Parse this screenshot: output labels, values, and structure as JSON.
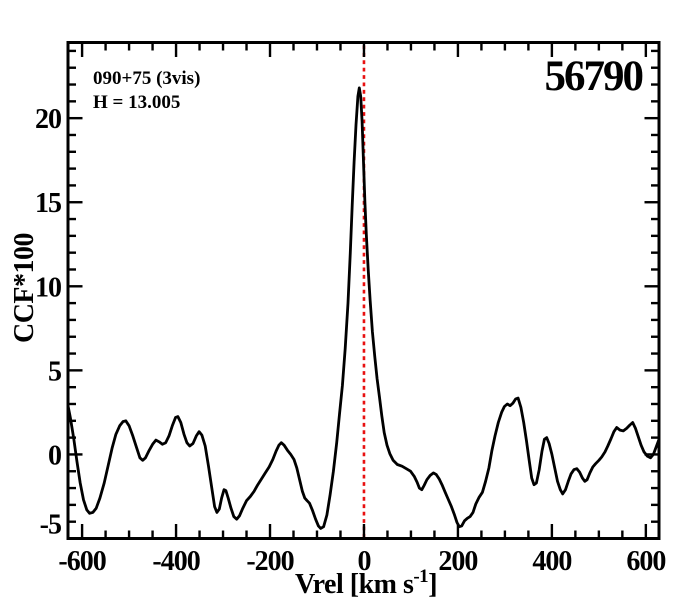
{
  "chart_data": {
    "type": "line",
    "title": "56790",
    "annotations": [
      "090+75 (3vis)",
      "H = 13.005"
    ],
    "xlabel": {
      "main": "Vrel [km s",
      "sup": "-1",
      "end": "]"
    },
    "ylabel": "CCF*100",
    "xlim": [
      -630,
      628
    ],
    "ylim": [
      -5,
      24.5
    ],
    "x_major_ticks": [
      -600,
      -400,
      -200,
      0,
      200,
      400,
      600
    ],
    "x_tick_labels": [
      "-600",
      "-400",
      "-200",
      "0",
      "200",
      "400",
      "600"
    ],
    "x_minor_step": 50,
    "y_major_ticks": [
      -5,
      0,
      5,
      10,
      15,
      20
    ],
    "y_tick_labels": [
      "-5",
      "0",
      "5",
      "10",
      "15",
      "20"
    ],
    "y_minor_step": 1,
    "grid": false,
    "legend": null,
    "marker_line_x": 0,
    "colors": {
      "curve": "#000000",
      "marker_line": "#e81010",
      "frame": "#000000",
      "text": "#000000",
      "background": "#ffffff"
    },
    "series": [
      {
        "name": "CCF",
        "points": [
          [
            -630,
            2.9
          ],
          [
            -625,
            2.2
          ],
          [
            -618,
            1.0
          ],
          [
            -611,
            -0.4
          ],
          [
            -604,
            -1.7
          ],
          [
            -597,
            -2.7
          ],
          [
            -590,
            -3.3
          ],
          [
            -584,
            -3.5
          ],
          [
            -577,
            -3.45
          ],
          [
            -570,
            -3.2
          ],
          [
            -562,
            -2.6
          ],
          [
            -553,
            -1.7
          ],
          [
            -544,
            -0.6
          ],
          [
            -536,
            0.4
          ],
          [
            -528,
            1.2
          ],
          [
            -520,
            1.7
          ],
          [
            -513,
            1.95
          ],
          [
            -507,
            2.0
          ],
          [
            -500,
            1.7
          ],
          [
            -492,
            1.1
          ],
          [
            -484,
            0.4
          ],
          [
            -477,
            -0.2
          ],
          [
            -471,
            -0.35
          ],
          [
            -465,
            -0.2
          ],
          [
            -458,
            0.2
          ],
          [
            -450,
            0.6
          ],
          [
            -443,
            0.85
          ],
          [
            -436,
            0.75
          ],
          [
            -429,
            0.6
          ],
          [
            -422,
            0.7
          ],
          [
            -415,
            1.1
          ],
          [
            -408,
            1.7
          ],
          [
            -401,
            2.2
          ],
          [
            -396,
            2.25
          ],
          [
            -390,
            1.9
          ],
          [
            -383,
            1.2
          ],
          [
            -377,
            0.7
          ],
          [
            -371,
            0.5
          ],
          [
            -364,
            0.65
          ],
          [
            -357,
            1.1
          ],
          [
            -351,
            1.35
          ],
          [
            -345,
            1.15
          ],
          [
            -338,
            0.5
          ],
          [
            -331,
            -0.7
          ],
          [
            -324,
            -2.0
          ],
          [
            -318,
            -3.1
          ],
          [
            -313,
            -3.45
          ],
          [
            -308,
            -3.25
          ],
          [
            -303,
            -2.6
          ],
          [
            -298,
            -2.1
          ],
          [
            -294,
            -2.15
          ],
          [
            -289,
            -2.6
          ],
          [
            -283,
            -3.2
          ],
          [
            -277,
            -3.7
          ],
          [
            -271,
            -3.85
          ],
          [
            -265,
            -3.65
          ],
          [
            -258,
            -3.2
          ],
          [
            -250,
            -2.75
          ],
          [
            -242,
            -2.5
          ],
          [
            -234,
            -2.2
          ],
          [
            -226,
            -1.8
          ],
          [
            -218,
            -1.45
          ],
          [
            -210,
            -1.1
          ],
          [
            -202,
            -0.75
          ],
          [
            -194,
            -0.3
          ],
          [
            -187,
            0.2
          ],
          [
            -181,
            0.55
          ],
          [
            -176,
            0.7
          ],
          [
            -170,
            0.55
          ],
          [
            -163,
            0.25
          ],
          [
            -156,
            0.0
          ],
          [
            -149,
            -0.3
          ],
          [
            -143,
            -0.8
          ],
          [
            -137,
            -1.5
          ],
          [
            -131,
            -2.2
          ],
          [
            -126,
            -2.6
          ],
          [
            -121,
            -2.75
          ],
          [
            -116,
            -2.9
          ],
          [
            -110,
            -3.3
          ],
          [
            -103,
            -3.85
          ],
          [
            -97,
            -4.25
          ],
          [
            -92,
            -4.4
          ],
          [
            -86,
            -4.3
          ],
          [
            -79,
            -3.6
          ],
          [
            -72,
            -2.4
          ],
          [
            -65,
            -1.0
          ],
          [
            -58,
            0.7
          ],
          [
            -52,
            2.4
          ],
          [
            -46,
            4.1
          ],
          [
            -40,
            6.3
          ],
          [
            -34,
            9.0
          ],
          [
            -29,
            12.0
          ],
          [
            -25,
            14.8
          ],
          [
            -21,
            17.4
          ],
          [
            -17,
            19.6
          ],
          [
            -13,
            21.3
          ],
          [
            -10,
            21.8
          ],
          [
            -7,
            21.3
          ],
          [
            -4,
            19.8
          ],
          [
            -1,
            17.4
          ],
          [
            2,
            15.0
          ],
          [
            5,
            13.1
          ],
          [
            9,
            11.0
          ],
          [
            13,
            9.2
          ],
          [
            18,
            7.3
          ],
          [
            23,
            5.8
          ],
          [
            28,
            4.5
          ],
          [
            33,
            3.4
          ],
          [
            38,
            2.3
          ],
          [
            43,
            1.3
          ],
          [
            49,
            0.55
          ],
          [
            55,
            0.05
          ],
          [
            62,
            -0.35
          ],
          [
            71,
            -0.6
          ],
          [
            81,
            -0.7
          ],
          [
            90,
            -0.85
          ],
          [
            99,
            -1.0
          ],
          [
            107,
            -1.3
          ],
          [
            113,
            -1.65
          ],
          [
            118,
            -2.0
          ],
          [
            123,
            -2.1
          ],
          [
            128,
            -1.85
          ],
          [
            134,
            -1.5
          ],
          [
            141,
            -1.25
          ],
          [
            148,
            -1.1
          ],
          [
            154,
            -1.2
          ],
          [
            160,
            -1.45
          ],
          [
            166,
            -1.8
          ],
          [
            173,
            -2.25
          ],
          [
            179,
            -2.65
          ],
          [
            186,
            -3.1
          ],
          [
            192,
            -3.55
          ],
          [
            198,
            -4.05
          ],
          [
            203,
            -4.3
          ],
          [
            208,
            -4.25
          ],
          [
            214,
            -3.95
          ],
          [
            220,
            -3.8
          ],
          [
            226,
            -3.7
          ],
          [
            232,
            -3.45
          ],
          [
            238,
            -2.95
          ],
          [
            245,
            -2.55
          ],
          [
            252,
            -2.25
          ],
          [
            259,
            -1.6
          ],
          [
            266,
            -0.8
          ],
          [
            272,
            0.2
          ],
          [
            279,
            1.1
          ],
          [
            286,
            1.9
          ],
          [
            293,
            2.5
          ],
          [
            299,
            2.85
          ],
          [
            305,
            3.0
          ],
          [
            311,
            2.9
          ],
          [
            317,
            3.05
          ],
          [
            323,
            3.3
          ],
          [
            328,
            3.35
          ],
          [
            334,
            2.8
          ],
          [
            340,
            1.9
          ],
          [
            346,
            0.8
          ],
          [
            352,
            -0.4
          ],
          [
            357,
            -1.4
          ],
          [
            362,
            -1.8
          ],
          [
            367,
            -1.7
          ],
          [
            373,
            -0.9
          ],
          [
            379,
            0.2
          ],
          [
            384,
            0.9
          ],
          [
            389,
            1.0
          ],
          [
            394,
            0.65
          ],
          [
            400,
            0.0
          ],
          [
            406,
            -0.8
          ],
          [
            412,
            -1.6
          ],
          [
            418,
            -2.1
          ],
          [
            423,
            -2.35
          ],
          [
            429,
            -2.1
          ],
          [
            435,
            -1.6
          ],
          [
            441,
            -1.15
          ],
          [
            447,
            -0.9
          ],
          [
            453,
            -0.85
          ],
          [
            459,
            -1.05
          ],
          [
            465,
            -1.4
          ],
          [
            470,
            -1.6
          ],
          [
            475,
            -1.5
          ],
          [
            481,
            -1.1
          ],
          [
            487,
            -0.75
          ],
          [
            493,
            -0.55
          ],
          [
            500,
            -0.35
          ],
          [
            506,
            -0.15
          ],
          [
            513,
            0.15
          ],
          [
            519,
            0.5
          ],
          [
            526,
            0.95
          ],
          [
            532,
            1.35
          ],
          [
            538,
            1.6
          ],
          [
            545,
            1.45
          ],
          [
            552,
            1.4
          ],
          [
            559,
            1.55
          ],
          [
            566,
            1.75
          ],
          [
            572,
            1.9
          ],
          [
            578,
            1.55
          ],
          [
            584,
            1.05
          ],
          [
            590,
            0.55
          ],
          [
            596,
            0.15
          ],
          [
            603,
            -0.1
          ],
          [
            610,
            -0.2
          ],
          [
            616,
            0.0
          ],
          [
            622,
            0.45
          ],
          [
            628,
            0.9
          ]
        ]
      }
    ]
  }
}
